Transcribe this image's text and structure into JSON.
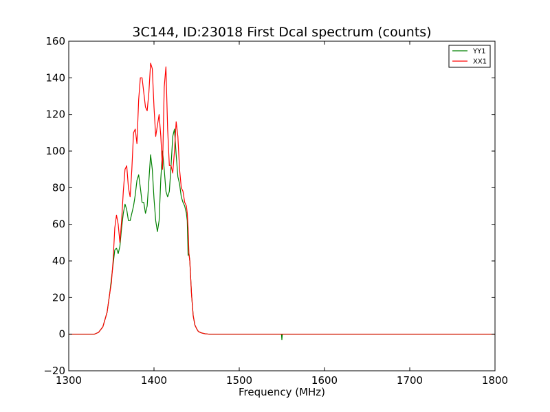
{
  "chart_data": {
    "type": "line",
    "title": "3C144, ID:23018 First Dcal spectrum (counts)",
    "xlabel": "Frequency (MHz)",
    "ylabel": "",
    "xlim": [
      1300,
      1800
    ],
    "ylim": [
      -20,
      160
    ],
    "xticks": [
      1300,
      1400,
      1500,
      1600,
      1700,
      1800
    ],
    "yticks": [
      -20,
      0,
      20,
      40,
      60,
      80,
      100,
      120,
      140,
      160
    ],
    "xtick_labels": [
      "1300",
      "1400",
      "1500",
      "1600",
      "1700",
      "1800"
    ],
    "ytick_labels": [
      "−20",
      "0",
      "20",
      "40",
      "60",
      "80",
      "100",
      "120",
      "140",
      "160"
    ],
    "grid": false,
    "legend_position": "top-right",
    "series": [
      {
        "name": "YY1",
        "color": "#008000",
        "x": [
          1300,
          1325,
          1330,
          1335,
          1340,
          1345,
          1348,
          1350,
          1352,
          1354,
          1356,
          1358,
          1360,
          1362,
          1364,
          1366,
          1368,
          1370,
          1372,
          1374,
          1376,
          1378,
          1380,
          1382,
          1384,
          1386,
          1388,
          1390,
          1392,
          1394,
          1396,
          1398,
          1400,
          1402,
          1404,
          1406,
          1408,
          1410,
          1412,
          1414,
          1416,
          1418,
          1420,
          1422,
          1424,
          1426,
          1428,
          1430,
          1432,
          1434,
          1436,
          1438,
          1439,
          1440,
          1441,
          1442,
          1444,
          1446,
          1448,
          1450,
          1452,
          1455,
          1460,
          1465,
          1470,
          1480,
          1500,
          1549.5,
          1550,
          1550.5,
          1560,
          1600,
          1700,
          1800
        ],
        "y": [
          0,
          0,
          0,
          1,
          4,
          12,
          22,
          30,
          38,
          46,
          47,
          44,
          48,
          58,
          66,
          71,
          68,
          62,
          62,
          66,
          70,
          76,
          84,
          87,
          80,
          72,
          72,
          66,
          70,
          84,
          98,
          90,
          74,
          62,
          56,
          62,
          85,
          100,
          90,
          78,
          75,
          78,
          92,
          108,
          112,
          98,
          86,
          82,
          75,
          72,
          70,
          66,
          62,
          43,
          44,
          40,
          22,
          10,
          5,
          3,
          1.5,
          0.8,
          0.2,
          0,
          0,
          0,
          0,
          0,
          -3,
          0,
          0,
          0,
          0,
          0
        ]
      },
      {
        "name": "XX1",
        "color": "#ff0000",
        "x": [
          1300,
          1325,
          1330,
          1335,
          1340,
          1345,
          1348,
          1350,
          1352,
          1354,
          1356,
          1358,
          1360,
          1362,
          1364,
          1366,
          1368,
          1370,
          1372,
          1374,
          1376,
          1378,
          1380,
          1382,
          1384,
          1386,
          1388,
          1390,
          1392,
          1394,
          1396,
          1398,
          1400,
          1402,
          1404,
          1406,
          1408,
          1410,
          1412,
          1414,
          1416,
          1418,
          1420,
          1422,
          1424,
          1426,
          1428,
          1430,
          1432,
          1434,
          1436,
          1438,
          1439,
          1440,
          1441,
          1442,
          1444,
          1446,
          1448,
          1450,
          1452,
          1455,
          1460,
          1465,
          1470,
          1480,
          1500,
          1600,
          1700,
          1800
        ],
        "y": [
          0,
          0,
          0,
          1,
          4,
          12,
          22,
          28,
          40,
          58,
          65,
          60,
          50,
          62,
          78,
          90,
          92,
          80,
          75,
          90,
          110,
          112,
          104,
          128,
          140,
          140,
          132,
          124,
          122,
          132,
          148,
          145,
          124,
          108,
          114,
          120,
          108,
          90,
          135,
          146,
          112,
          92,
          92,
          88,
          100,
          116,
          108,
          90,
          80,
          78,
          72,
          70,
          66,
          58,
          44,
          40,
          22,
          10,
          5,
          3,
          1.5,
          0.8,
          0.2,
          0,
          0,
          0,
          0,
          0,
          0,
          0
        ]
      }
    ]
  }
}
